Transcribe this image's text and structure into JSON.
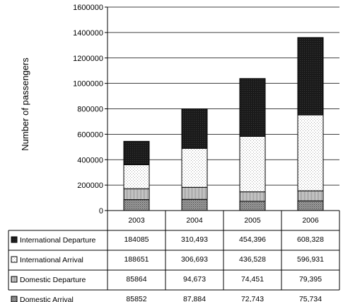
{
  "chart_data": {
    "type": "bar",
    "stacked": true,
    "title": "",
    "xlabel": "",
    "ylabel": "Number of passengers",
    "ylim": [
      0,
      1600000
    ],
    "yticks": [
      0,
      200000,
      400000,
      600000,
      800000,
      1000000,
      1200000,
      1400000,
      1600000
    ],
    "ytick_labels": [
      "0",
      "200000",
      "400000",
      "600000",
      "800000",
      "1000000",
      "1200000",
      "1400000",
      "1600000"
    ],
    "grid": true,
    "legend_placement": "left of data table",
    "categories": [
      "2003",
      "2004",
      "2005",
      "2006"
    ],
    "series": [
      {
        "name": "Domestic Arrival",
        "values": [
          85852,
          87884,
          72743,
          75734
        ],
        "labels": [
          "85852",
          "87,884",
          "72,743",
          "75,734"
        ],
        "color": "#999999",
        "pattern": "dense-dots"
      },
      {
        "name": "Domestic Departure",
        "values": [
          85864,
          94673,
          74451,
          79395
        ],
        "labels": [
          "85864",
          "94,673",
          "74,451",
          "79,395"
        ],
        "color": "#d4d4d4",
        "pattern": "vertical-lines"
      },
      {
        "name": "International Arrival",
        "values": [
          188651,
          306693,
          436528,
          596931
        ],
        "labels": [
          "188651",
          "306,693",
          "436,528",
          "596,931"
        ],
        "color": "#f4f4f4",
        "pattern": "fine-dots"
      },
      {
        "name": "International Departure",
        "values": [
          184085,
          310493,
          454396,
          608328
        ],
        "labels": [
          "184085",
          "310,493",
          "454,396",
          "608,328"
        ],
        "color": "#1a1a1a",
        "pattern": "dark"
      }
    ],
    "table_row_order": [
      "International Departure",
      "International Arrival",
      "Domestic Departure",
      "Domestic Arrival"
    ]
  }
}
